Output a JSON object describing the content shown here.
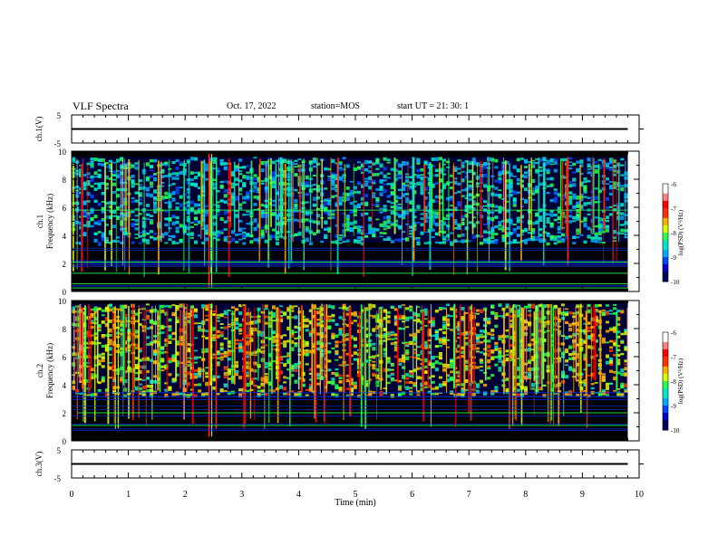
{
  "header": {
    "title": "VLF Spectra",
    "date": "Oct. 17, 2022",
    "station": "station=MOS",
    "start": "start  UT =   21: 30: 1"
  },
  "chart_data": [
    {
      "type": "line",
      "panel": "ch1_voltage",
      "ylabel": "ch.1(V)",
      "ylim": [
        -5,
        5
      ],
      "y_ticks": [
        "5",
        "-5"
      ],
      "x": [
        0,
        9.8
      ],
      "values": [
        0,
        0
      ]
    },
    {
      "type": "heatmap",
      "panel": "ch1_spectrogram",
      "ylabel": "ch.1\nFrequency (kHz)",
      "ylim": [
        0,
        10
      ],
      "xlim": [
        0,
        10
      ],
      "y_ticks": [
        "0",
        "2",
        "4",
        "6",
        "8",
        "10"
      ],
      "colorbar": {
        "label": "log(PSD) (V²/Hz)",
        "range": [
          -10,
          -6
        ],
        "ticks": [
          "-6",
          "-7",
          "-8",
          "-9",
          "-10"
        ]
      },
      "background_band_khz": [
        3.5,
        9.6
      ],
      "strong_narrowband_lines_khz": [
        0.25,
        0.55,
        1.3,
        2.1,
        5.8
      ]
    },
    {
      "type": "heatmap",
      "panel": "ch2_spectrogram",
      "ylabel": "ch.2\nFrequency (kHz)",
      "ylim": [
        0,
        10
      ],
      "xlim": [
        0,
        10
      ],
      "y_ticks": [
        "0",
        "2",
        "4",
        "6",
        "8",
        "10"
      ],
      "colorbar": {
        "label": "log(PSD) (V²/Hz)",
        "range": [
          -10,
          -6
        ],
        "ticks": [
          "-6",
          "-7",
          "-8",
          "-9",
          "-10"
        ]
      },
      "background_band_khz": [
        3.3,
        9.8
      ],
      "strong_narrowband_lines_khz": [
        1.1,
        2.0
      ]
    },
    {
      "type": "line",
      "panel": "ch3_voltage",
      "ylabel": "ch.3(V)",
      "ylim": [
        -5,
        5
      ],
      "y_ticks": [
        "5",
        "-5"
      ],
      "x": [
        0,
        9.8
      ],
      "values": [
        0,
        0
      ]
    }
  ],
  "x_axis": {
    "label": "Time (min)",
    "ticks": [
      "0",
      "1",
      "2",
      "3",
      "4",
      "5",
      "6",
      "7",
      "8",
      "9",
      "10"
    ],
    "range": [
      0,
      10
    ],
    "data_end": 9.8
  },
  "colormap": [
    "#000000",
    "#000060",
    "#0000c8",
    "#0048ff",
    "#00a8ff",
    "#00e8c8",
    "#28ff50",
    "#d8ff00",
    "#ffb000",
    "#ff3000",
    "#ff0000",
    "#ff8080",
    "#ffffff"
  ]
}
